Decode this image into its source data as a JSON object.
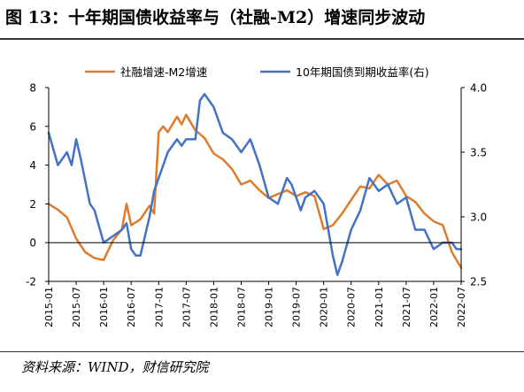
{
  "title": "图 13：十年期国债收益率与（社融-M2）增速同步波动",
  "source": "资料来源：WIND，财信研究院",
  "chart_data": {
    "type": "line",
    "x_tick_labels": [
      "2015-01",
      "2015-07",
      "2016-01",
      "2016-07",
      "2017-01",
      "2017-07",
      "2018-01",
      "2018-07",
      "2019-01",
      "2019-07",
      "2020-01",
      "2020-07",
      "2021-01",
      "2021-07",
      "2022-01",
      "2022-07"
    ],
    "y_left_ticks": [
      "-2",
      "0",
      "2",
      "4",
      "6",
      "8"
    ],
    "y_right_ticks": [
      "2.5",
      "3.0",
      "3.5",
      "4.0"
    ],
    "ylim_left": [
      -2,
      8
    ],
    "ylim_right": [
      2.5,
      4.0
    ],
    "legend_position": "top",
    "series": [
      {
        "name": "社融增速-M2增速",
        "axis": "left",
        "color": "#E07B2B",
        "x": [
          "2015-01",
          "2015-03",
          "2015-05",
          "2015-07",
          "2015-09",
          "2015-11",
          "2016-01",
          "2016-03",
          "2016-05",
          "2016-06",
          "2016-07",
          "2016-09",
          "2016-11",
          "2016-12",
          "2017-01",
          "2017-02",
          "2017-03",
          "2017-05",
          "2017-06",
          "2017-07",
          "2017-09",
          "2017-11",
          "2018-01",
          "2018-03",
          "2018-05",
          "2018-07",
          "2018-09",
          "2018-11",
          "2019-01",
          "2019-03",
          "2019-05",
          "2019-07",
          "2019-09",
          "2019-11",
          "2020-01",
          "2020-03",
          "2020-05",
          "2020-07",
          "2020-09",
          "2020-11",
          "2021-01",
          "2021-03",
          "2021-05",
          "2021-07",
          "2021-09",
          "2021-11",
          "2022-01",
          "2022-03",
          "2022-05",
          "2022-07"
        ],
        "values": [
          2.0,
          1.7,
          1.3,
          0.2,
          -0.5,
          -0.8,
          -0.9,
          0.1,
          0.7,
          2.0,
          0.9,
          1.2,
          1.9,
          1.5,
          5.7,
          6.0,
          5.7,
          6.5,
          6.1,
          6.6,
          5.8,
          5.4,
          4.6,
          4.3,
          3.8,
          3.0,
          3.2,
          2.7,
          2.3,
          2.5,
          2.7,
          2.4,
          2.6,
          2.4,
          0.7,
          0.9,
          1.5,
          2.2,
          2.9,
          2.8,
          3.5,
          3.0,
          3.2,
          2.4,
          2.1,
          1.5,
          1.1,
          0.9,
          -0.5,
          -1.3
        ]
      },
      {
        "name": "10年期国债到期收益率(右)",
        "axis": "right",
        "color": "#4472C4",
        "x": [
          "2015-01",
          "2015-03",
          "2015-05",
          "2015-06",
          "2015-07",
          "2015-08",
          "2015-10",
          "2015-11",
          "2016-01",
          "2016-03",
          "2016-05",
          "2016-06",
          "2016-07",
          "2016-08",
          "2016-09",
          "2016-11",
          "2016-12",
          "2017-01",
          "2017-03",
          "2017-05",
          "2017-06",
          "2017-07",
          "2017-09",
          "2017-10",
          "2017-11",
          "2017-12",
          "2018-01",
          "2018-03",
          "2018-05",
          "2018-07",
          "2018-09",
          "2018-11",
          "2019-01",
          "2019-03",
          "2019-05",
          "2019-06",
          "2019-08",
          "2019-09",
          "2019-11",
          "2020-01",
          "2020-03",
          "2020-04",
          "2020-05",
          "2020-07",
          "2020-09",
          "2020-11",
          "2021-01",
          "2021-03",
          "2021-05",
          "2021-07",
          "2021-09",
          "2021-11",
          "2022-01",
          "2022-03",
          "2022-05",
          "2022-06",
          "2022-07"
        ],
        "values": [
          3.65,
          3.4,
          3.5,
          3.4,
          3.6,
          3.45,
          3.1,
          3.05,
          2.8,
          2.85,
          2.9,
          2.95,
          2.75,
          2.7,
          2.7,
          3.0,
          3.2,
          3.3,
          3.5,
          3.6,
          3.55,
          3.6,
          3.6,
          3.9,
          3.95,
          3.9,
          3.85,
          3.65,
          3.6,
          3.5,
          3.6,
          3.4,
          3.15,
          3.1,
          3.3,
          3.25,
          3.05,
          3.15,
          3.2,
          3.1,
          2.7,
          2.55,
          2.65,
          2.9,
          3.05,
          3.3,
          3.2,
          3.25,
          3.1,
          3.15,
          2.9,
          2.9,
          2.75,
          2.8,
          2.8,
          2.75,
          2.75
        ]
      }
    ]
  }
}
